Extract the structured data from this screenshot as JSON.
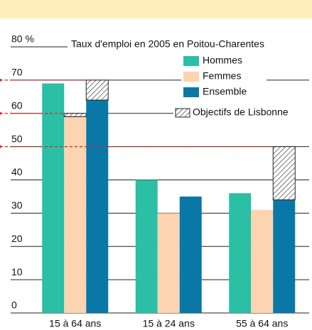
{
  "chart_data": {
    "type": "bar",
    "title": "Taux d'emploi en 2005 en Poitou-Charentes",
    "categories": [
      "15 à 64 ans",
      "15 à 24 ans",
      "55 à 64 ans"
    ],
    "series": [
      {
        "name": "Hommes",
        "color": "#2bbfa6",
        "values": [
          69,
          40,
          36
        ]
      },
      {
        "name": "Femmes",
        "color": "#fcd4b2",
        "values": [
          59,
          30,
          31
        ]
      },
      {
        "name": "Ensemble",
        "color": "#0a78a6",
        "values": [
          64,
          35,
          34
        ]
      }
    ],
    "objectives": {
      "name": "Objectifs de Lisbonne",
      "values": [
        [
          null,
          60,
          70
        ],
        [
          null,
          null,
          null
        ],
        [
          null,
          null,
          50
        ]
      ]
    },
    "ylim": [
      0,
      80
    ],
    "yticks": [
      0,
      10,
      20,
      30,
      40,
      50,
      60,
      70,
      {
        "value": 80,
        "label": "80 %"
      }
    ],
    "grid": true
  }
}
